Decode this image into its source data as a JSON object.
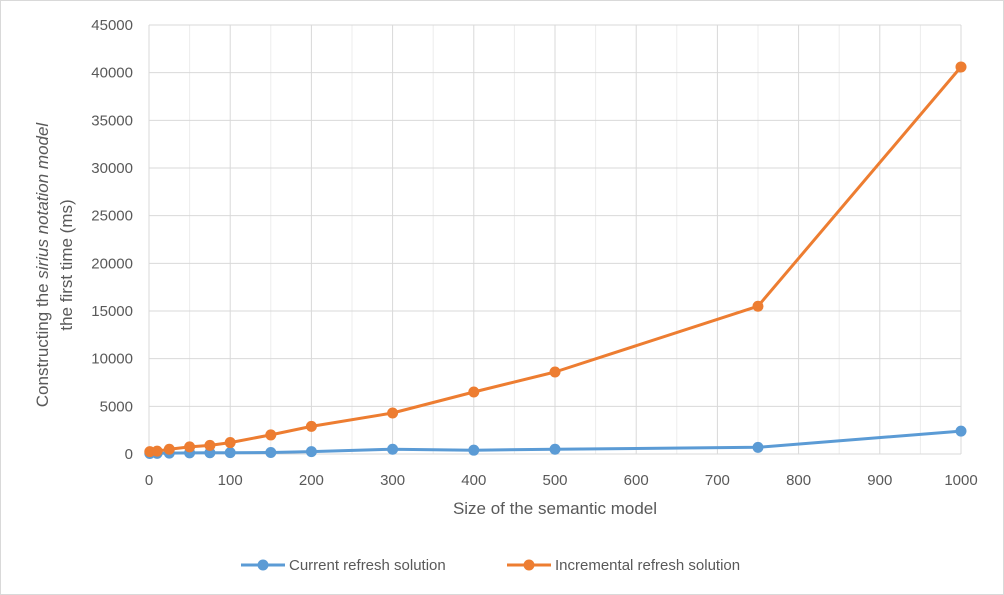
{
  "chart_data": {
    "type": "line",
    "xlabel": "Size of the semantic model",
    "ylabel": {
      "line1_before": "Constructing the ",
      "line1_italic": "sirius notation model",
      "line2": "the first time (ms)"
    },
    "xlim": [
      0,
      1000
    ],
    "ylim": [
      0,
      45000
    ],
    "xticks": [
      0,
      100,
      200,
      300,
      400,
      500,
      600,
      700,
      800,
      900,
      1000
    ],
    "yticks": [
      0,
      5000,
      10000,
      15000,
      20000,
      25000,
      30000,
      35000,
      40000,
      45000
    ],
    "grid": true,
    "legend_position": "bottom",
    "x": [
      1,
      10,
      25,
      50,
      75,
      100,
      150,
      200,
      300,
      400,
      500,
      750,
      1000
    ],
    "series": [
      {
        "name": "Current refresh solution",
        "color": "#5b9bd5",
        "values": [
          50,
          70,
          90,
          120,
          130,
          140,
          160,
          250,
          500,
          400,
          500,
          700,
          2400
        ]
      },
      {
        "name": "Incremental refresh solution",
        "color": "#ed7d31",
        "values": [
          250,
          300,
          500,
          750,
          900,
          1200,
          2000,
          2900,
          4300,
          6500,
          8600,
          15500,
          40600
        ]
      }
    ]
  }
}
